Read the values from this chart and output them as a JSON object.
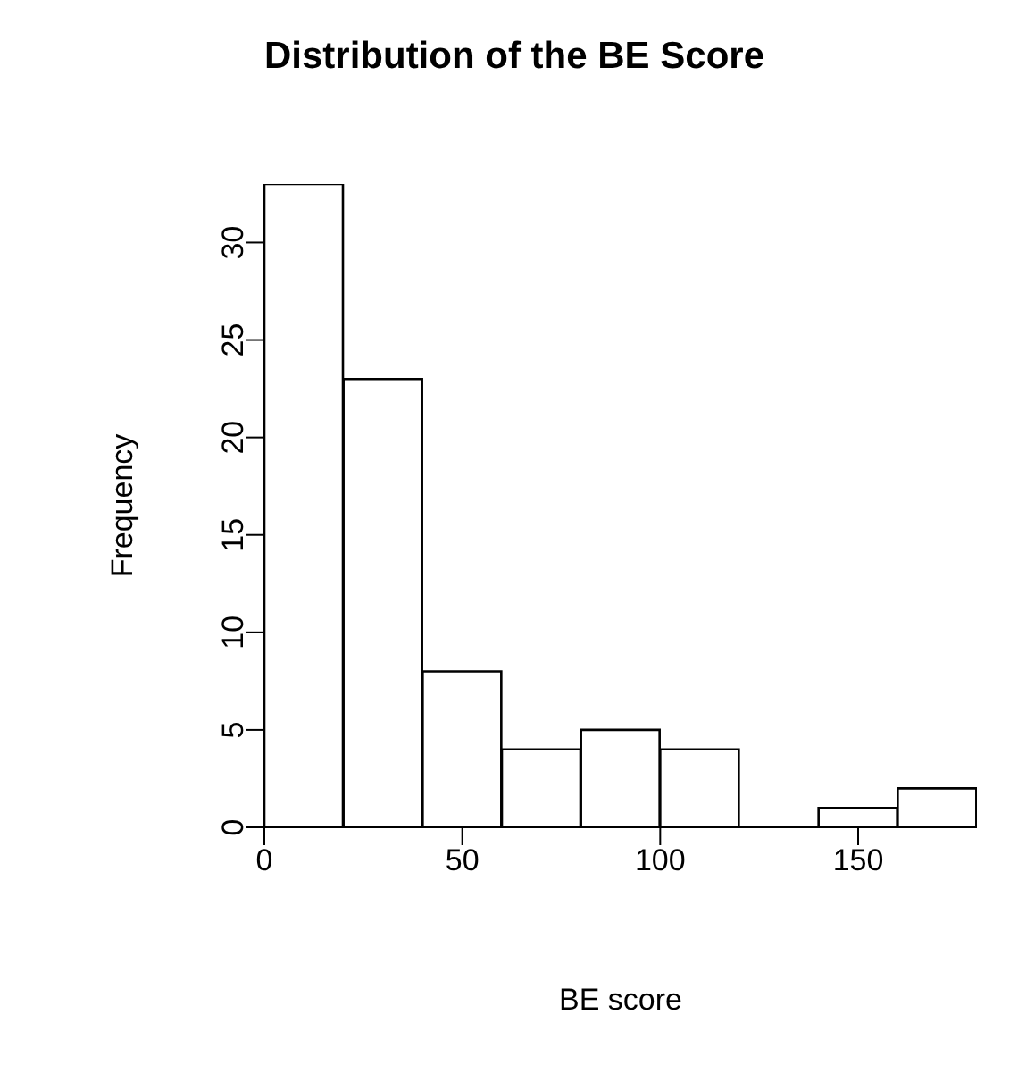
{
  "chart_data": {
    "type": "histogram",
    "title": "Distribution of the BE Score",
    "xlabel": "BE score",
    "ylabel": "Frequency",
    "bins": [
      0,
      20,
      40,
      60,
      80,
      100,
      120,
      140,
      160,
      180
    ],
    "values": [
      33,
      23,
      8,
      4,
      5,
      4,
      0,
      1,
      2
    ],
    "color": "#ffffff",
    "xlim": [
      0,
      180
    ],
    "xticks": [
      0,
      50,
      100,
      150
    ],
    "ylim": [
      0,
      33
    ],
    "yticks": [
      0,
      5,
      10,
      15,
      20,
      25,
      30
    ],
    "grid": false,
    "legend": false
  }
}
